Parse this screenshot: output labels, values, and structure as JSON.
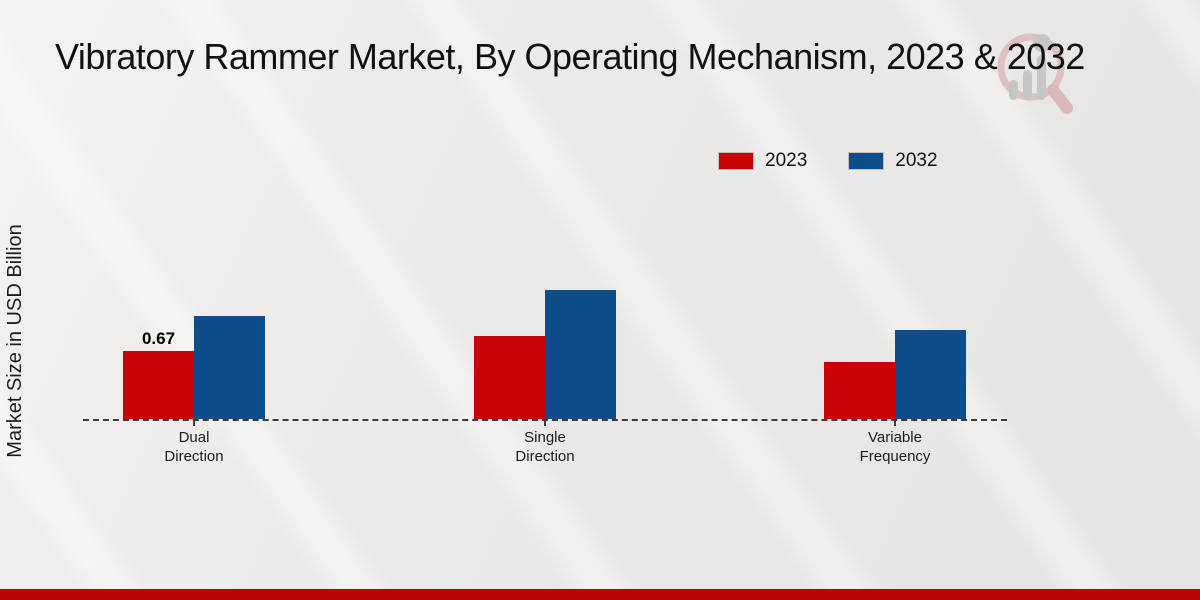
{
  "colors": {
    "series_2023": "#c70403",
    "series_2032": "#0d4d89",
    "footer_bar": "#b90404",
    "axis_line": "#3c3c3c",
    "background": "#eae9e7",
    "watermark_ring": "#dcbcbc",
    "watermark_bars": "#c6c6c6"
  },
  "watermark": {
    "icon": "magnifier-bar-chart-logo"
  },
  "chart_data": {
    "type": "bar",
    "title": "Vibratory Rammer Market, By Operating Mechanism, 2023 & 2032",
    "xlabel": "",
    "ylabel": "Market Size in USD Billion",
    "categories": [
      "Dual\nDirection",
      "Single\nDirection",
      "Variable\nFrequency"
    ],
    "series": [
      {
        "name": "2023",
        "color": "#c70403",
        "values": [
          0.67,
          0.82,
          0.56
        ]
      },
      {
        "name": "2032",
        "color": "#0d4d89",
        "values": [
          1.02,
          1.28,
          0.88
        ]
      }
    ],
    "annotations": [
      {
        "series_index": 0,
        "category_index": 0,
        "text": "0.67"
      }
    ],
    "ylim": [
      0,
      1.5
    ],
    "y_ticks_visible": false,
    "grid": false,
    "baseline_style": "dashed",
    "legend_position": "top-right"
  }
}
